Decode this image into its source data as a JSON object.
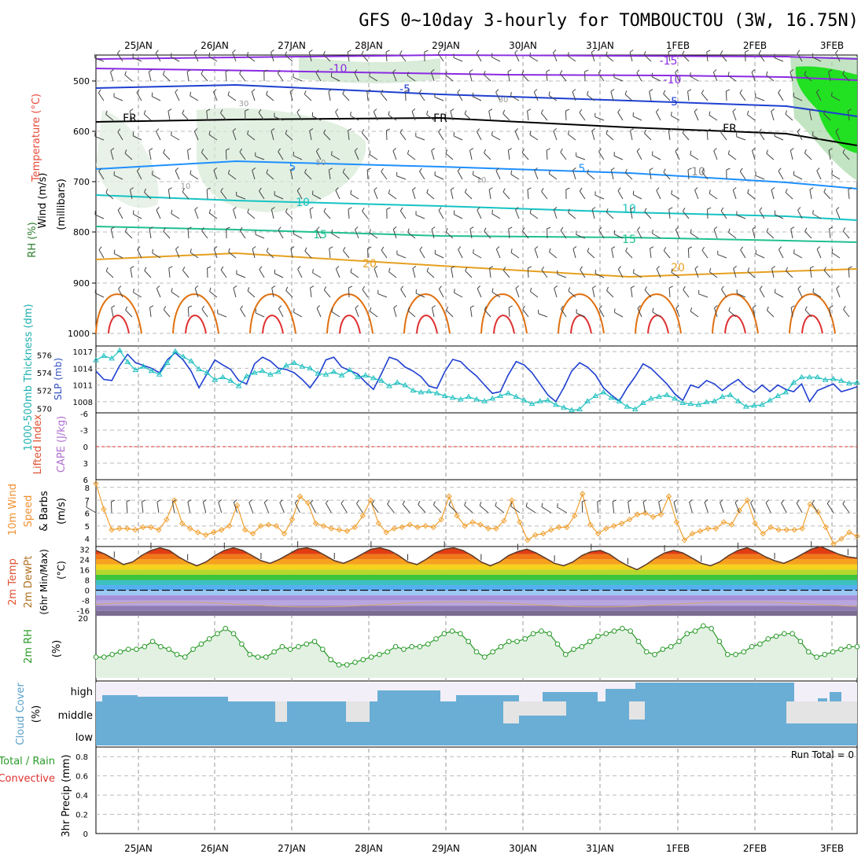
{
  "title": "GFS 0~10day 3-hourly for TOMBOUCTOU (3W, 16.75N)",
  "dates": [
    "25JAN",
    "26JAN",
    "27JAN",
    "28JAN",
    "29JAN",
    "30JAN",
    "31JAN",
    "1FEB",
    "2FEB",
    "3FEB"
  ],
  "colors": {
    "t_neg10": "#8a2be2",
    "t_neg5": "#1e40d0",
    "t_fr": "#000000",
    "t_5": "#1e90ff",
    "t_10": "#17c3c3",
    "t_15": "#20c090",
    "t_20": "#e6a020",
    "t_25": "#e07010",
    "t_30": "#e03030",
    "slp": "#1f3fd0",
    "thick": "#20c0c0",
    "wind": "#f0a030",
    "rh": "#2a9a2a",
    "cloud": "#6aaed6",
    "lifted": "#e03030"
  },
  "panels": {
    "sounding": {
      "ylabel": "(millibars)",
      "label_wind": "Wind (m/s)",
      "label_temp": "Temperature (°C)",
      "label_rh": "RH (%)",
      "pressure_ticks": [
        "500",
        "600",
        "700",
        "800",
        "900",
        "1000"
      ],
      "isotherm_labels": [
        "-15",
        "-10",
        "-10",
        "-5",
        "-5",
        "FR",
        "FR",
        "FR",
        "5",
        "5",
        "10",
        "10",
        "15",
        "15",
        "20",
        "20",
        "10"
      ],
      "rh_labels": [
        "30",
        "50",
        "30",
        "10",
        "10"
      ]
    },
    "slp": {
      "label_left": "1000-500mb Thickness (dm)",
      "label_right": "SLP (mb)",
      "slp_ticks": [
        "1017",
        "1014",
        "1011",
        "1008"
      ],
      "thick_ticks": [
        "576",
        "574",
        "572",
        "570"
      ]
    },
    "cape": {
      "label_left": "Lifted Index",
      "label_right": "CAPE (J/kg)",
      "ticks": [
        "-6",
        "-3",
        "0",
        "3",
        "6"
      ]
    },
    "wind10": {
      "label1": "10m Wind",
      "label2": "Speed",
      "label3": "& Barbs",
      "unit": "(m/s)",
      "ticks": [
        "8",
        "7",
        "6",
        "5",
        "4"
      ]
    },
    "temp2m": {
      "label1": "2m Temp",
      "label2": "2m DewPt",
      "label3": "(6hr Min/Max)",
      "unit": "(°C)",
      "ticks": [
        "32",
        "24",
        "16",
        "8",
        "0",
        "-8",
        "-16"
      ]
    },
    "rh2m": {
      "label": "2m RH",
      "unit": "(%)",
      "ticks": [
        "20"
      ]
    },
    "cloud": {
      "label": "Cloud Cover",
      "unit": "(%)",
      "levels": [
        "high",
        "middle",
        "low"
      ]
    },
    "precip": {
      "label1": "Total / Rain",
      "label2": "Convective",
      "label3": "3hr Precip (mm)",
      "ticks": [
        "0.8",
        "0.6",
        "0.4",
        "0.2",
        "0"
      ],
      "run_total": "Run Total = 0"
    }
  },
  "chart_data": [
    {
      "type": "line",
      "name": "SLP",
      "unit": "mb",
      "ylim": [
        1006,
        1018
      ],
      "values": [
        1013.5,
        1012,
        1011.8,
        1014.5,
        1016.5,
        1015,
        1014.5,
        1014,
        1013.2,
        1015.5,
        1016.8,
        1015.5,
        1013.5,
        1010.5,
        1013,
        1015.5,
        1014.6,
        1013.8,
        1011.8,
        1011.2,
        1014.8,
        1016,
        1015.3,
        1014,
        1013.8,
        1013.2,
        1012,
        1010.5,
        1012.5,
        1015.5,
        1016,
        1014.2,
        1013.6,
        1013,
        1011.5,
        1010.2,
        1013,
        1016,
        1015.5,
        1014.2,
        1013.5,
        1012.5,
        1010.8,
        1010.4,
        1013.4,
        1015.6,
        1015.2,
        1013.8,
        1012.6,
        1011,
        1009.5,
        1009.8,
        1012.8,
        1015.2,
        1014.6,
        1013.2,
        1011.2,
        1009.2,
        1008,
        1010.5,
        1013.5,
        1015,
        1014.2,
        1012.8,
        1010.5,
        1009.2,
        1008.1,
        1010.5,
        1012.5,
        1014.8,
        1014,
        1012.6,
        1011.2,
        1009.4,
        1008.2,
        1011,
        1010.5,
        1011.8,
        1011.2,
        1010,
        1011.1,
        1012,
        1010.6,
        1009.7,
        1011,
        1009.8,
        1011,
        1010.2,
        1009.8,
        1011.2,
        1008,
        1010,
        1010.6,
        1011.2,
        1009.8,
        1010.2,
        1010.7
      ]
    },
    {
      "type": "line",
      "name": "1000-500mb Thickness",
      "unit": "dm",
      "ylim": [
        569.5,
        577
      ],
      "values": [
        575.4,
        575.9,
        575.6,
        576.5,
        575.2,
        574.3,
        574.7,
        574.2,
        573.8,
        575.1,
        576.4,
        575.8,
        575.3,
        574.4,
        574,
        573.2,
        573.5,
        573.1,
        572.5,
        573.6,
        574,
        574.2,
        573.8,
        574.1,
        574.8,
        575.1,
        574.7,
        574.5,
        573.9,
        573.8,
        574.1,
        573.7,
        574.3,
        573.5,
        573.7,
        573.4,
        573.1,
        572.5,
        572.9,
        572.6,
        572,
        571.8,
        571.9,
        571.7,
        571.4,
        571.2,
        571,
        571.3,
        571,
        570.8,
        571.1,
        571.4,
        571.7,
        571.3,
        570.9,
        570.5,
        570.8,
        570.9,
        570.4,
        570.1,
        569.8,
        569.9,
        570.8,
        571.4,
        571.8,
        571.2,
        570.8,
        570.2,
        569.9,
        570.6,
        571.1,
        571.3,
        571.5,
        571.1,
        570.6,
        570.5,
        570.4,
        570.7,
        570.8,
        571.3,
        571.5,
        570.8,
        570.2,
        570.3,
        570.4,
        570.9,
        571.4,
        571.8,
        572.9,
        573.5,
        573.5,
        573.5,
        573.2,
        573.3,
        573.1,
        572.8,
        572.9
      ]
    },
    {
      "type": "line",
      "name": "10m Wind Speed",
      "unit": "m/s",
      "ylim": [
        3.4,
        8.6
      ],
      "values": [
        8.3,
        6.3,
        4.7,
        4.8,
        4.8,
        4.7,
        4.9,
        4.9,
        4.7,
        5.5,
        7,
        5.2,
        4.8,
        4.5,
        4.3,
        4.5,
        4.7,
        5,
        6.6,
        4.7,
        4.4,
        5,
        5.1,
        5,
        4.4,
        5.5,
        7.3,
        6.8,
        5.2,
        5,
        4.8,
        4.7,
        4.6,
        4.9,
        5.8,
        7,
        5.2,
        4.5,
        4.8,
        4.9,
        5.1,
        4.9,
        5,
        4.9,
        5.5,
        7.3,
        5.8,
        5,
        5.3,
        5.1,
        4.8,
        4.8,
        5.4,
        7,
        5.3,
        3.9,
        4.3,
        4.4,
        4.7,
        4.9,
        4.9,
        5.8,
        7.5,
        5.1,
        4.4,
        4.8,
        5,
        5.2,
        5.5,
        5.9,
        6,
        5.7,
        5.9,
        7.3,
        5.3,
        3.9,
        4.4,
        4.6,
        4.8,
        4.8,
        5.3,
        5.1,
        6.2,
        7,
        5.2,
        4.4,
        4.9,
        4.7,
        4.7,
        4.7,
        4.8,
        6.7,
        6.1,
        4.9,
        3.6,
        4,
        4.5,
        4.2
      ]
    },
    {
      "type": "line",
      "name": "2m RH",
      "unit": "%",
      "values": [
        13,
        13,
        14,
        15,
        16,
        16,
        17,
        19,
        17,
        16,
        14,
        13,
        16,
        18,
        20,
        22,
        24,
        22,
        18,
        14,
        13,
        13,
        15,
        17,
        16,
        17,
        18,
        19,
        16,
        12,
        10,
        10,
        11,
        12,
        13,
        14,
        15,
        17,
        16,
        17,
        17,
        18,
        20,
        22,
        23,
        22,
        19,
        15,
        13,
        15,
        17,
        19,
        19,
        20,
        22,
        23,
        22,
        18,
        14,
        16,
        17,
        19,
        21,
        22,
        23,
        24,
        23,
        19,
        15,
        14,
        16,
        17,
        19,
        22,
        23,
        25,
        24,
        19,
        14,
        14,
        15,
        17,
        18,
        20,
        21,
        22,
        22,
        19,
        15,
        13,
        14,
        15,
        16,
        17,
        17
      ]
    },
    {
      "type": "area",
      "name": "2m Temp",
      "unit": "°C",
      "ylim": [
        -18,
        34
      ],
      "values": [
        31,
        28,
        24,
        20,
        22,
        27,
        31,
        33,
        31,
        26,
        22,
        19,
        22,
        27,
        31,
        33,
        31,
        27,
        23,
        21,
        24,
        28,
        32,
        33,
        31,
        27,
        23,
        21,
        24,
        28,
        32,
        33,
        31,
        27,
        22,
        20,
        24,
        29,
        32,
        33,
        31,
        27,
        22,
        19,
        22,
        27,
        30,
        32,
        29,
        25,
        21,
        19,
        22,
        27,
        30,
        31,
        28,
        23,
        19,
        16,
        20,
        25,
        29,
        31,
        29,
        25,
        21,
        19,
        22,
        27,
        31,
        33,
        30,
        26,
        23,
        21,
        24,
        28,
        32,
        34,
        31,
        28,
        26,
        25
      ]
    },
    {
      "type": "bar",
      "name": "Cloud Cover",
      "unit": "%",
      "categories": [
        "high",
        "middle",
        "low"
      ],
      "values": [
        55,
        60,
        100
      ]
    },
    {
      "type": "bar",
      "name": "3hr Precip",
      "unit": "mm",
      "ylim": [
        0,
        0.9
      ],
      "values": [
        0
      ]
    }
  ]
}
